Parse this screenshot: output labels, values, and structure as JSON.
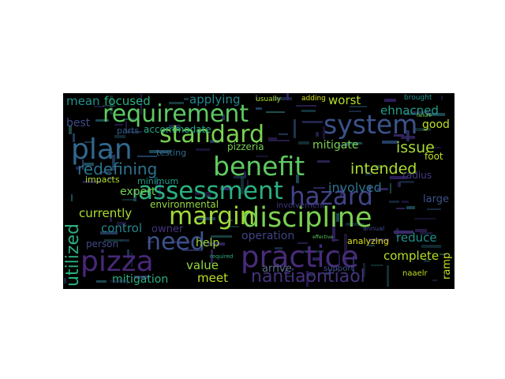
{
  "palette": {
    "background": "#000000",
    "page": "#ffffff",
    "yellow": "#d2e21b",
    "lightgreen": "#7ad151",
    "green": "#2ab07f",
    "teal": "#25858e",
    "blue": "#3a548c",
    "purple": "#472c7a",
    "darkpurple": "#44015a"
  },
  "words": {
    "practice": "practice",
    "discipline": "discipline",
    "plan": "plan",
    "requirement": "requirement",
    "system": "system",
    "standard": "standard",
    "benefit": "benefit",
    "assessment": "assessment",
    "hazard": "hazard",
    "margin": "margin",
    "pizza": "pizza",
    "need": "need",
    "nantiaontiaol": "nantiaontiaol",
    "redefining": "redefining",
    "intended": "intended",
    "issue": "issue",
    "utilized": "utilized",
    "mean": "mean",
    "focused": "focused",
    "applying": "applying",
    "worst": "worst",
    "ehnacned": "ehnacned",
    "good": "good",
    "best": "best",
    "parts": "parts",
    "accommodate": "accommodate",
    "mitigate": "mitigate",
    "pizzeria": "pizzeria",
    "testing": "testing",
    "impacts": "impacts",
    "expert": "expert",
    "minimum": "minimum",
    "involved": "involved",
    "radius": "radius",
    "large": "large",
    "environmental": "environmental",
    "currently": "currently",
    "involvement": "involvement",
    "control": "control",
    "owner": "owner",
    "operation": "operation",
    "reduce": "reduce",
    "help": "help",
    "person": "person",
    "analyzing": "analyzing",
    "complete": "complete",
    "value": "value",
    "arrive": "arrive",
    "meet": "meet",
    "mitigation": "mitigation",
    "support": "support",
    "naaelr": "naaelr",
    "foot": "foot",
    "adding": "adding",
    "usually": "usually",
    "brought": "brought",
    "annual": "annual",
    "required": "required",
    "reading": "reading",
    "effective": "effective",
    "failure": "failure",
    "ramp": "ramp"
  }
}
